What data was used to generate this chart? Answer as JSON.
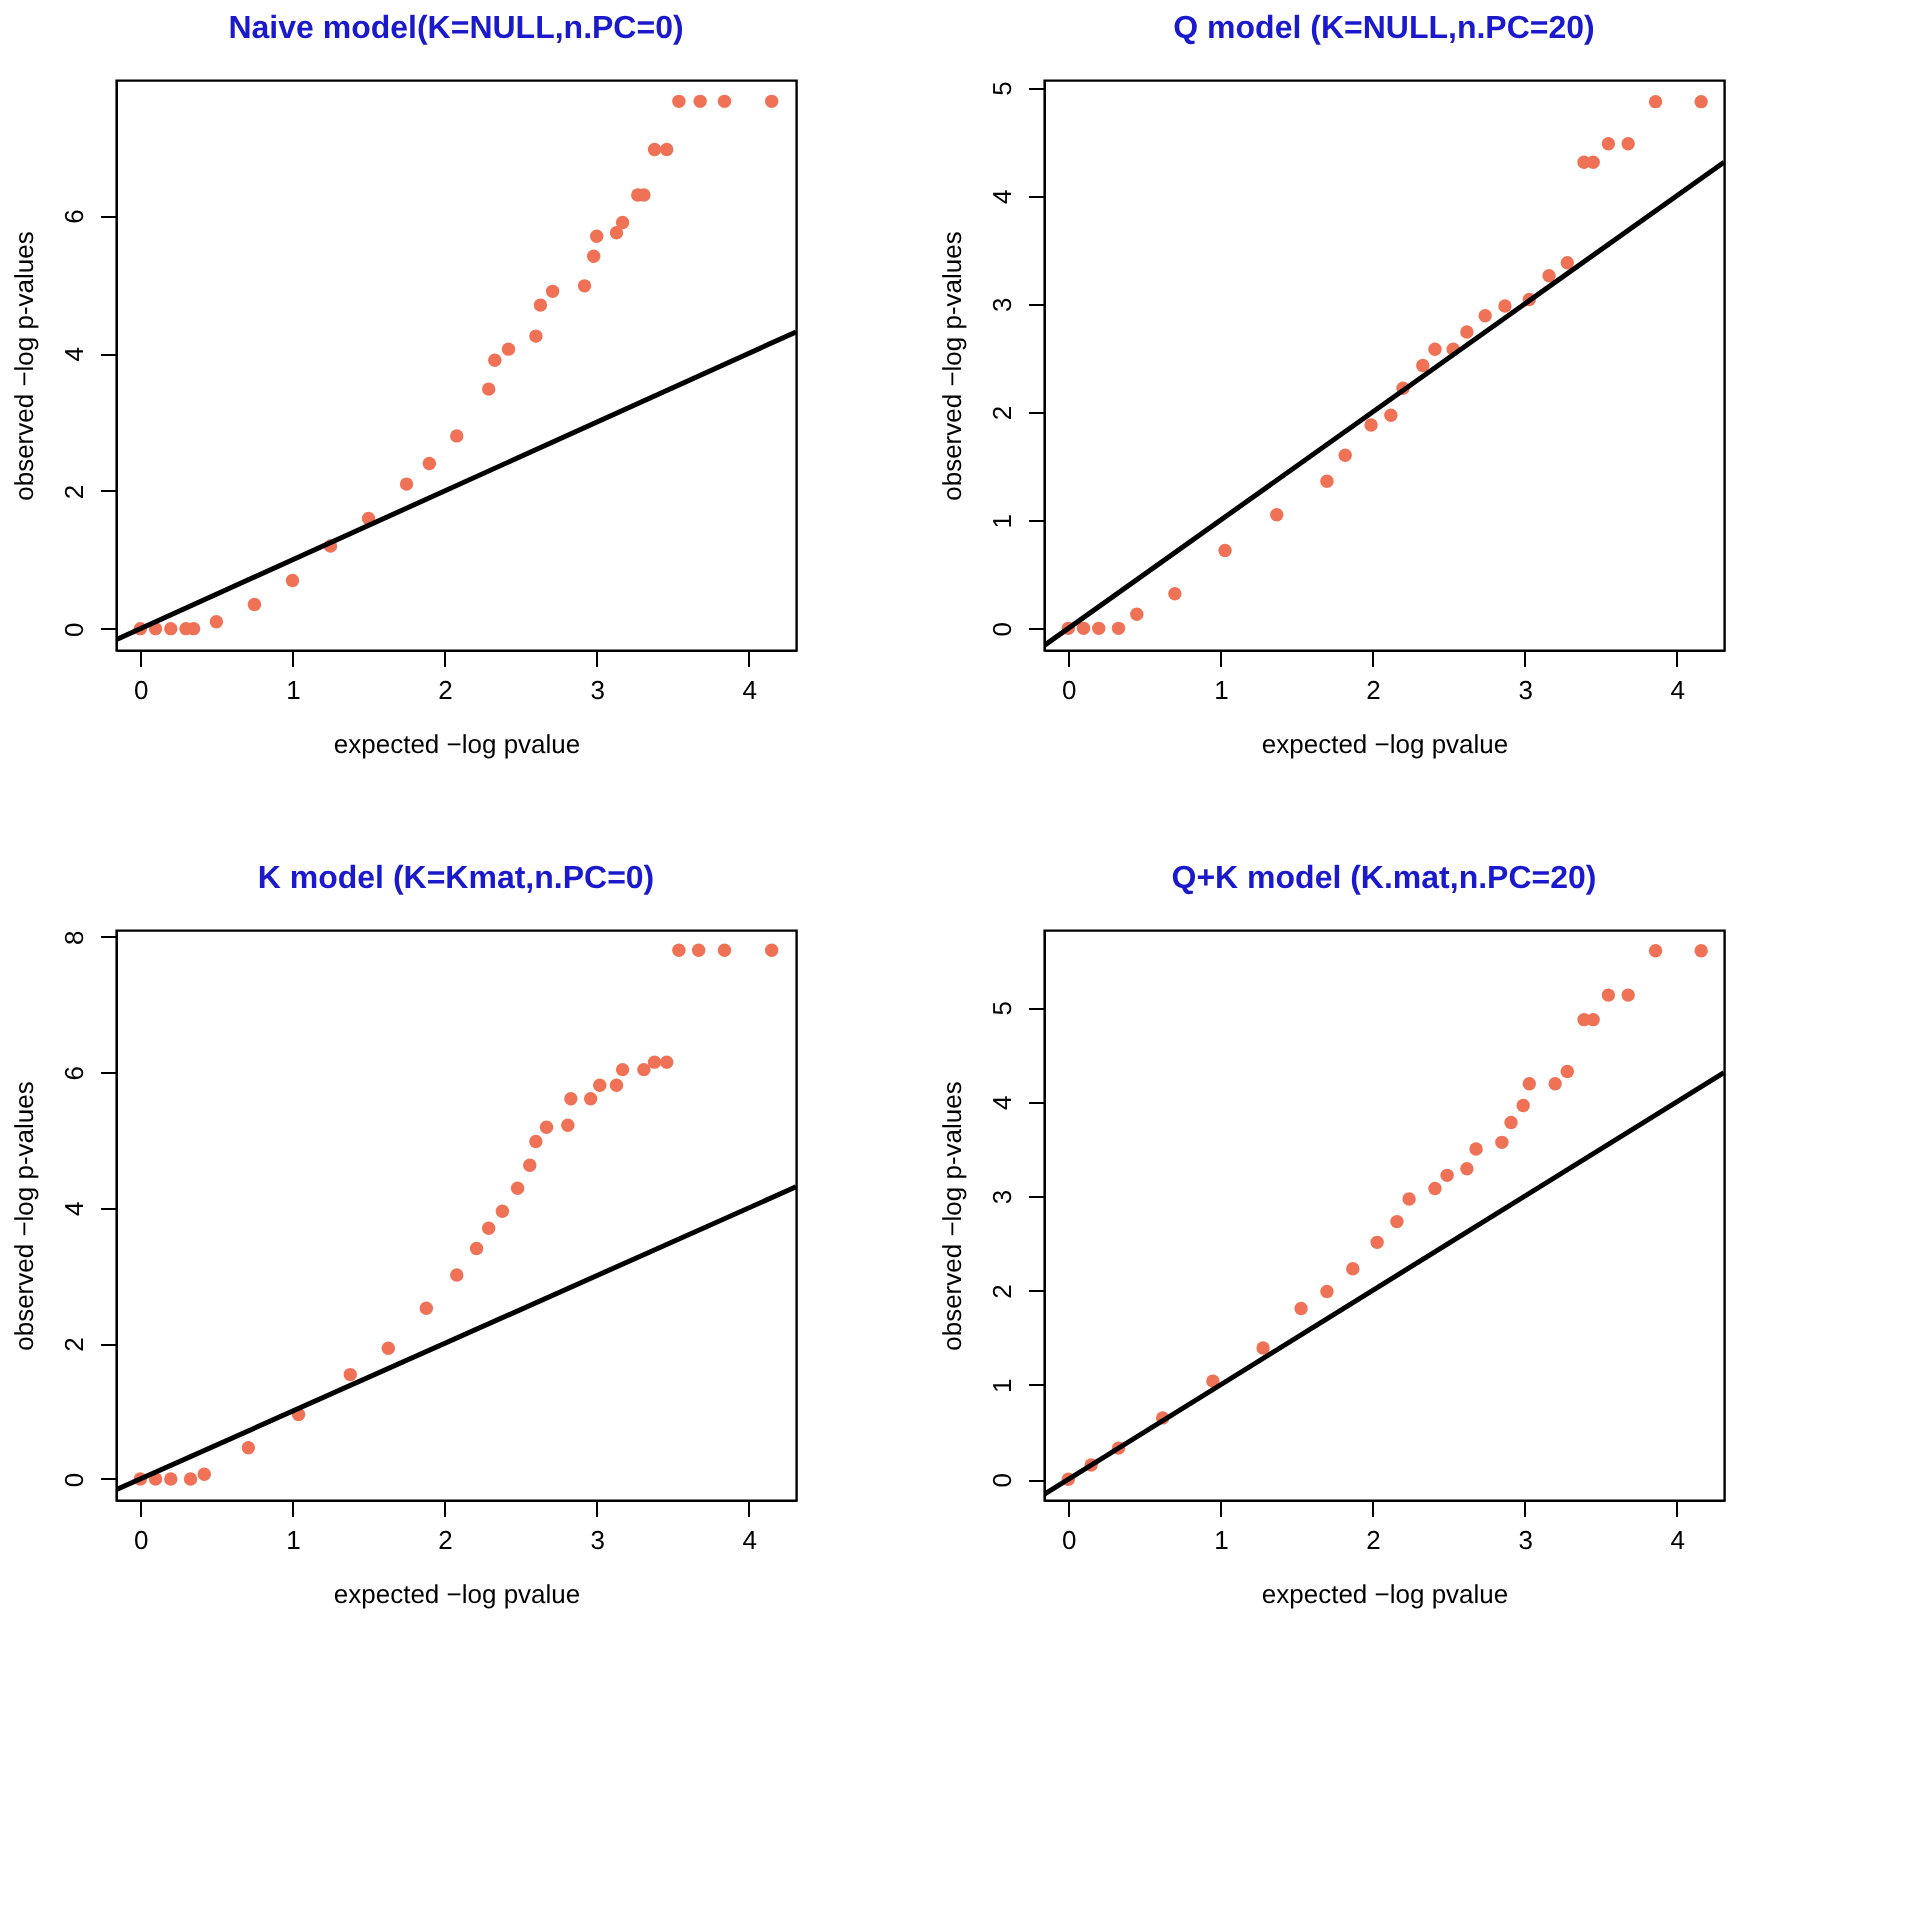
{
  "chart_data": [
    {
      "type": "scatter",
      "title": "Naive model(K=NULL,n.PC=0)",
      "xlabel": "expected −log pvalue",
      "ylabel": "observed −log p-values",
      "xlim": [
        -0.16,
        4.31
      ],
      "ylim": [
        -0.31,
        7.97
      ],
      "xticks": [
        0,
        1,
        2,
        3,
        4
      ],
      "yticks": [
        0,
        2,
        4,
        6
      ],
      "grid": false,
      "line_style": "solid",
      "series": [
        {
          "color": "#f07256",
          "marker": "circle",
          "x": [
            0,
            0.1,
            0.2,
            0.3,
            0.35,
            0.5,
            0.75,
            1.0,
            1.25,
            1.5,
            1.75,
            1.9,
            2.08,
            2.29,
            2.33,
            2.42,
            2.6,
            2.63,
            2.71,
            2.92,
            2.98,
            3.0,
            3.13,
            3.17,
            3.27,
            3.31,
            3.38,
            3.46,
            3.54,
            3.68,
            3.84,
            4.15
          ],
          "values": [
            0,
            0,
            0,
            0,
            0,
            0.1,
            0.35,
            0.7,
            1.2,
            1.6,
            2.1,
            2.4,
            2.8,
            3.48,
            3.9,
            4.06,
            4.25,
            4.7,
            4.9,
            4.98,
            5.41,
            5.7,
            5.75,
            5.9,
            6.3,
            6.3,
            6.96,
            6.96,
            7.66,
            7.66,
            7.66,
            7.66
          ]
        },
        {
          "type": "line",
          "color": "#000000",
          "x": [
            -0.16,
            4.31
          ],
          "values": [
            -0.16,
            4.31
          ]
        }
      ]
    },
    {
      "type": "scatter",
      "title": "Q model (K=NULL,n.PC=20)",
      "xlabel": "expected −log pvalue",
      "ylabel": "observed −log p-values",
      "xlim": [
        -0.16,
        4.31
      ],
      "ylim": [
        -0.2,
        5.07
      ],
      "xticks": [
        0,
        1,
        2,
        3,
        4
      ],
      "yticks": [
        0,
        1,
        2,
        3,
        4,
        5
      ],
      "grid": false,
      "line_style": "solid",
      "series": [
        {
          "color": "#f07256",
          "marker": "circle",
          "x": [
            0,
            0.1,
            0.2,
            0.33,
            0.45,
            0.7,
            1.03,
            1.37,
            1.7,
            1.82,
            1.99,
            2.12,
            2.2,
            2.33,
            2.41,
            2.53,
            2.62,
            2.74,
            2.87,
            3.03,
            3.16,
            3.28,
            3.39,
            3.45,
            3.55,
            3.68,
            3.86,
            4.16
          ],
          "values": [
            0,
            0,
            0,
            0,
            0.13,
            0.32,
            0.72,
            1.05,
            1.36,
            1.6,
            1.88,
            1.97,
            2.22,
            2.43,
            2.58,
            2.58,
            2.74,
            2.89,
            2.98,
            3.04,
            3.26,
            3.38,
            4.31,
            4.31,
            4.48,
            4.48,
            4.87,
            4.87
          ]
        },
        {
          "type": "line",
          "color": "#000000",
          "x": [
            -0.16,
            4.31
          ],
          "values": [
            -0.16,
            4.31
          ]
        }
      ]
    },
    {
      "type": "scatter",
      "title": "K model (K=Kmat,n.PC=0)",
      "xlabel": "expected −log pvalue",
      "ylabel": "observed −log p-values",
      "xlim": [
        -0.16,
        4.31
      ],
      "ylim": [
        -0.31,
        8.1
      ],
      "xticks": [
        0,
        1,
        2,
        3,
        4
      ],
      "yticks": [
        0,
        2,
        4,
        6,
        8
      ],
      "grid": false,
      "line_style": "solid",
      "series": [
        {
          "color": "#f07256",
          "marker": "circle",
          "x": [
            0,
            0.1,
            0.2,
            0.33,
            0.42,
            0.71,
            1.04,
            1.38,
            1.63,
            1.88,
            2.08,
            2.21,
            2.29,
            2.38,
            2.48,
            2.56,
            2.6,
            2.67,
            2.81,
            2.83,
            2.96,
            3.02,
            3.13,
            3.17,
            3.31,
            3.38,
            3.46,
            3.54,
            3.67,
            3.84,
            4.15
          ],
          "values": [
            0,
            0,
            0,
            0,
            0.07,
            0.46,
            0.95,
            1.54,
            1.93,
            2.52,
            3.01,
            3.4,
            3.7,
            3.95,
            4.29,
            4.63,
            4.98,
            5.19,
            5.22,
            5.61,
            5.61,
            5.81,
            5.81,
            6.04,
            6.04,
            6.15,
            6.15,
            7.8,
            7.8,
            7.8,
            7.8
          ]
        },
        {
          "type": "line",
          "color": "#000000",
          "x": [
            -0.16,
            4.31
          ],
          "values": [
            -0.16,
            4.31
          ]
        }
      ]
    },
    {
      "type": "scatter",
      "title": "Q+K model (K.mat,n.PC=20)",
      "xlabel": "expected −log pvalue",
      "ylabel": "observed −log p-values",
      "xlim": [
        -0.16,
        4.31
      ],
      "ylim": [
        -0.22,
        5.82
      ],
      "xticks": [
        0,
        1,
        2,
        3,
        4
      ],
      "yticks": [
        0,
        1,
        2,
        3,
        4,
        5
      ],
      "grid": false,
      "line_style": "solid",
      "series": [
        {
          "color": "#f07256",
          "marker": "circle",
          "x": [
            0,
            0.15,
            0.33,
            0.62,
            0.95,
            1.28,
            1.53,
            1.7,
            1.87,
            2.03,
            2.16,
            2.24,
            2.41,
            2.49,
            2.62,
            2.68,
            2.85,
            2.91,
            2.99,
            3.03,
            3.2,
            3.28,
            3.39,
            3.45,
            3.55,
            3.68,
            3.86,
            4.16
          ],
          "values": [
            0,
            0.15,
            0.33,
            0.65,
            1.04,
            1.39,
            1.81,
            1.99,
            2.23,
            2.51,
            2.73,
            2.97,
            3.08,
            3.22,
            3.29,
            3.5,
            3.57,
            3.78,
            3.96,
            4.19,
            4.19,
            4.32,
            4.87,
            4.87,
            5.13,
            5.13,
            5.6,
            5.6
          ]
        },
        {
          "type": "line",
          "color": "#000000",
          "x": [
            -0.16,
            4.31
          ],
          "values": [
            -0.16,
            4.31
          ]
        }
      ]
    }
  ]
}
